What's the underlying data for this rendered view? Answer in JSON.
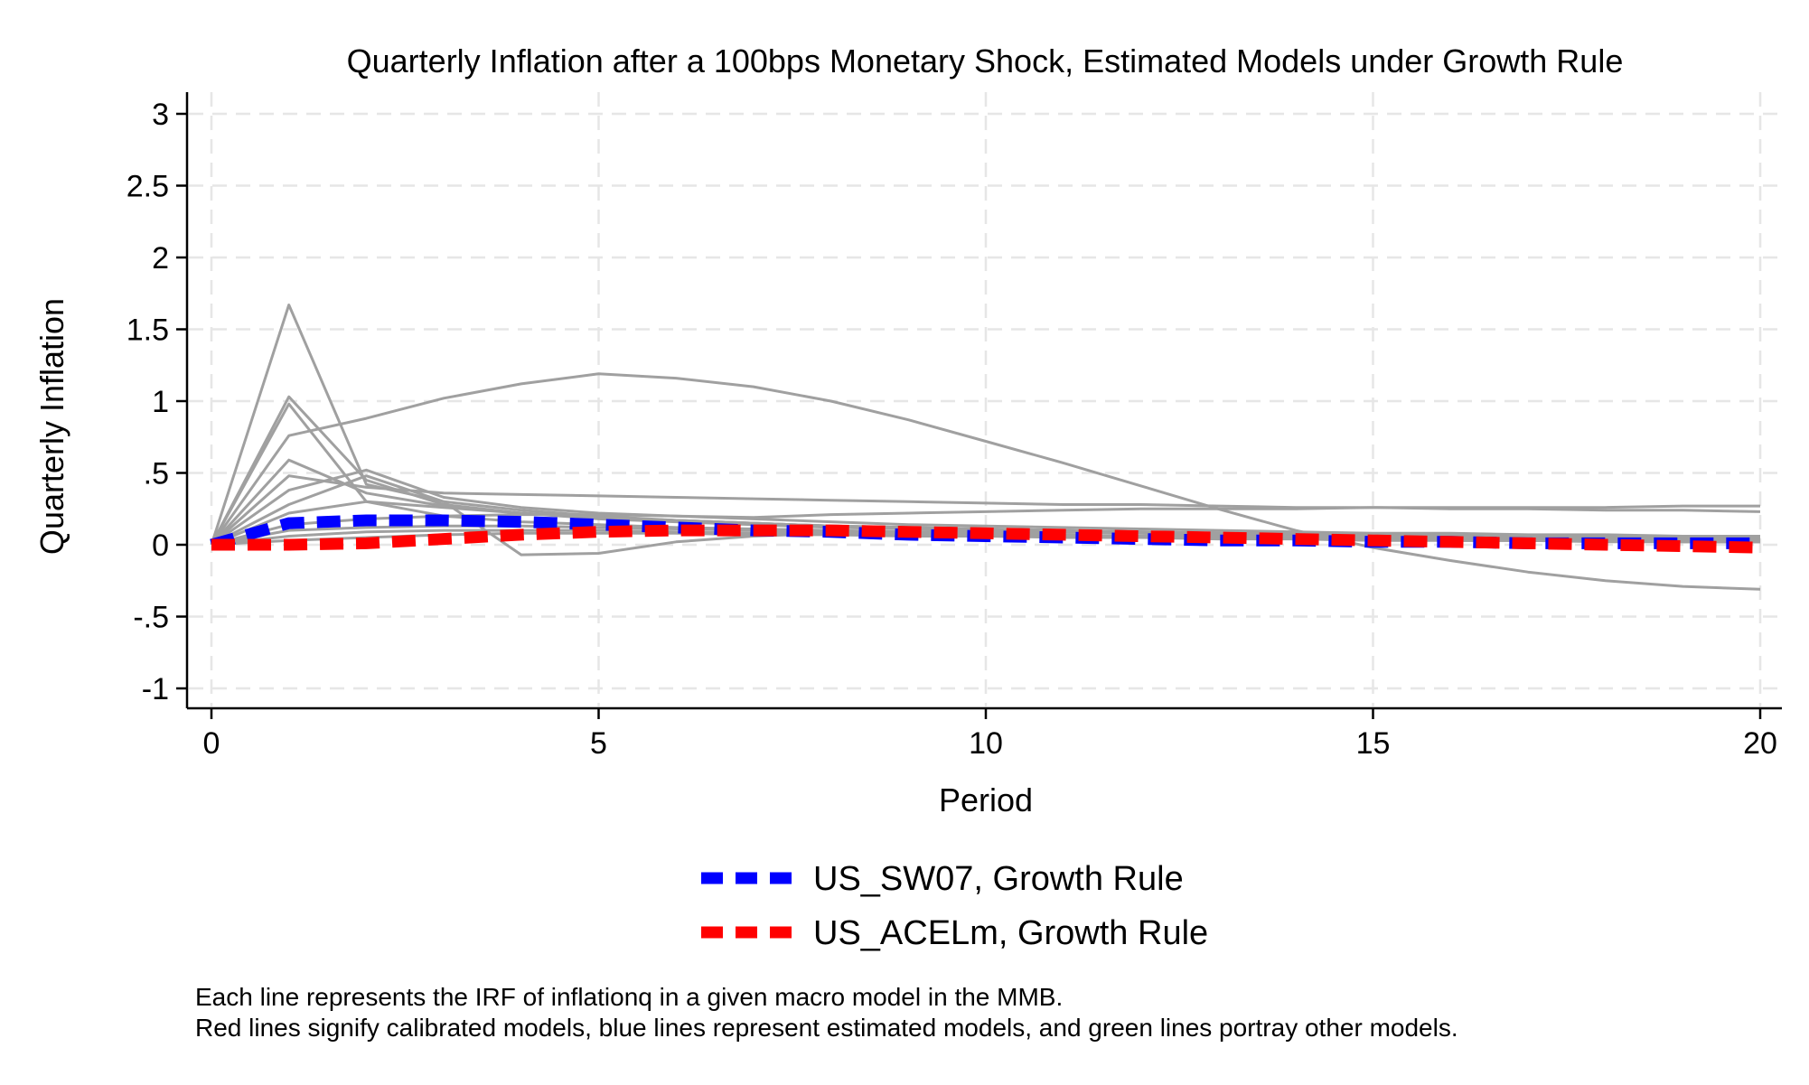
{
  "chart_data": {
    "type": "line",
    "title": "Quarterly Inflation after a 100bps Monetary Shock, Estimated Models under Growth Rule",
    "xlabel": "Period",
    "ylabel": "Quarterly Inflation",
    "xlim": [
      0,
      20
    ],
    "ylim": [
      -1,
      3
    ],
    "x_ticks": [
      0,
      5,
      10,
      15,
      20
    ],
    "x_tick_labels": [
      "0",
      "5",
      "10",
      "15",
      "20"
    ],
    "y_ticks": [
      -1,
      -0.5,
      0,
      0.5,
      1,
      1.5,
      2,
      2.5,
      3
    ],
    "y_tick_labels": [
      "-1",
      "-.5",
      "0",
      ".5",
      "1",
      "1.5",
      "2",
      "2.5",
      "3"
    ],
    "grid": true,
    "legend_position": "bottom",
    "x": [
      0,
      1,
      2,
      3,
      4,
      5,
      6,
      7,
      8,
      9,
      10,
      11,
      12,
      13,
      14,
      15,
      16,
      17,
      18,
      19,
      20
    ],
    "background_series": [
      {
        "values": [
          0,
          1.67,
          0.42,
          0.3,
          0.24,
          0.2,
          0.17,
          0.15,
          0.13,
          0.12,
          0.11,
          0.1,
          0.09,
          0.08,
          0.08,
          0.07,
          0.07,
          0.06,
          0.06,
          0.05,
          0.05
        ]
      },
      {
        "values": [
          0,
          1.03,
          0.45,
          0.28,
          0.22,
          0.18,
          0.16,
          0.14,
          0.12,
          0.11,
          0.1,
          0.09,
          0.08,
          0.07,
          0.07,
          0.06,
          0.06,
          0.05,
          0.05,
          0.05,
          0.04
        ]
      },
      {
        "values": [
          0,
          0.98,
          0.3,
          0.2,
          0.16,
          0.14,
          0.12,
          0.11,
          0.1,
          0.09,
          0.08,
          0.07,
          0.06,
          0.06,
          0.05,
          0.05,
          0.04,
          0.04,
          0.04,
          0.03,
          0.03
        ]
      },
      {
        "values": [
          0,
          0.76,
          0.88,
          1.02,
          1.12,
          1.19,
          1.16,
          1.1,
          1.0,
          0.87,
          0.72,
          0.57,
          0.41,
          0.25,
          0.1,
          -0.02,
          -0.11,
          -0.19,
          -0.25,
          -0.29,
          -0.31
        ]
      },
      {
        "values": [
          0,
          0.59,
          0.36,
          0.27,
          0.22,
          0.19,
          0.17,
          0.15,
          0.13,
          0.12,
          0.11,
          0.1,
          0.09,
          0.08,
          0.07,
          0.07,
          0.06,
          0.06,
          0.05,
          0.05,
          0.04
        ]
      },
      {
        "values": [
          0,
          0.48,
          0.4,
          0.36,
          0.35,
          0.34,
          0.33,
          0.32,
          0.31,
          0.3,
          0.29,
          0.28,
          0.28,
          0.27,
          0.26,
          0.26,
          0.25,
          0.25,
          0.24,
          0.24,
          0.23
        ]
      },
      {
        "values": [
          0,
          0.38,
          0.52,
          0.33,
          0.26,
          0.22,
          0.2,
          0.18,
          0.16,
          0.14,
          0.13,
          0.12,
          0.11,
          0.1,
          0.09,
          0.08,
          0.08,
          0.07,
          0.07,
          0.06,
          0.06
        ]
      },
      {
        "values": [
          0,
          0.28,
          0.48,
          0.3,
          -0.07,
          -0.06,
          0.02,
          0.06,
          0.08,
          0.09,
          0.09,
          0.09,
          0.08,
          0.08,
          0.07,
          0.07,
          0.06,
          0.06,
          0.05,
          0.05,
          0.05
        ]
      },
      {
        "values": [
          0,
          0.22,
          0.3,
          0.26,
          0.22,
          0.19,
          0.17,
          0.15,
          0.13,
          0.12,
          0.11,
          0.1,
          0.09,
          0.08,
          0.07,
          0.06,
          0.06,
          0.05,
          0.05,
          0.04,
          0.04
        ]
      },
      {
        "values": [
          0,
          0.14,
          0.18,
          0.2,
          0.21,
          0.21,
          0.2,
          0.19,
          0.21,
          0.22,
          0.23,
          0.24,
          0.25,
          0.25,
          0.25,
          0.26,
          0.26,
          0.26,
          0.26,
          0.27,
          0.27
        ]
      },
      {
        "values": [
          0,
          0.1,
          0.12,
          0.13,
          0.13,
          0.12,
          0.11,
          0.1,
          0.09,
          0.08,
          0.07,
          0.06,
          0.05,
          0.05,
          0.04,
          0.04,
          0.03,
          0.03,
          0.03,
          0.02,
          0.02
        ]
      },
      {
        "values": [
          0,
          0.06,
          0.09,
          0.1,
          0.1,
          0.1,
          0.09,
          0.08,
          0.08,
          0.07,
          0.06,
          0.06,
          0.05,
          0.05,
          0.04,
          0.04,
          0.03,
          0.03,
          0.03,
          0.02,
          0.02
        ]
      },
      {
        "values": [
          0,
          0.03,
          0.05,
          0.07,
          0.08,
          0.08,
          0.08,
          0.07,
          0.07,
          0.06,
          0.06,
          0.05,
          0.05,
          0.04,
          0.04,
          0.03,
          0.03,
          0.03,
          0.02,
          0.02,
          0.02
        ]
      }
    ],
    "series": [
      {
        "name": "US_SW07, Growth Rule",
        "color": "#0000ff",
        "values": [
          0,
          0.15,
          0.17,
          0.17,
          0.16,
          0.14,
          0.12,
          0.1,
          0.09,
          0.07,
          0.06,
          0.05,
          0.04,
          0.03,
          0.03,
          0.02,
          0.02,
          0.01,
          0.01,
          0.01,
          0.01
        ]
      },
      {
        "name": "US_ACELm, Growth Rule",
        "color": "#ff0000",
        "values": [
          0,
          0.0,
          0.01,
          0.04,
          0.07,
          0.09,
          0.1,
          0.1,
          0.1,
          0.09,
          0.08,
          0.07,
          0.06,
          0.05,
          0.04,
          0.03,
          0.02,
          0.01,
          0.0,
          -0.01,
          -0.02
        ]
      }
    ],
    "background_color": "#a0a0a0"
  },
  "notes": [
    "Each line represents the IRF of inflationq in a given macro model in the MMB.",
    "Red lines signify calibrated models, blue lines represent estimated models, and green lines portray other models."
  ]
}
